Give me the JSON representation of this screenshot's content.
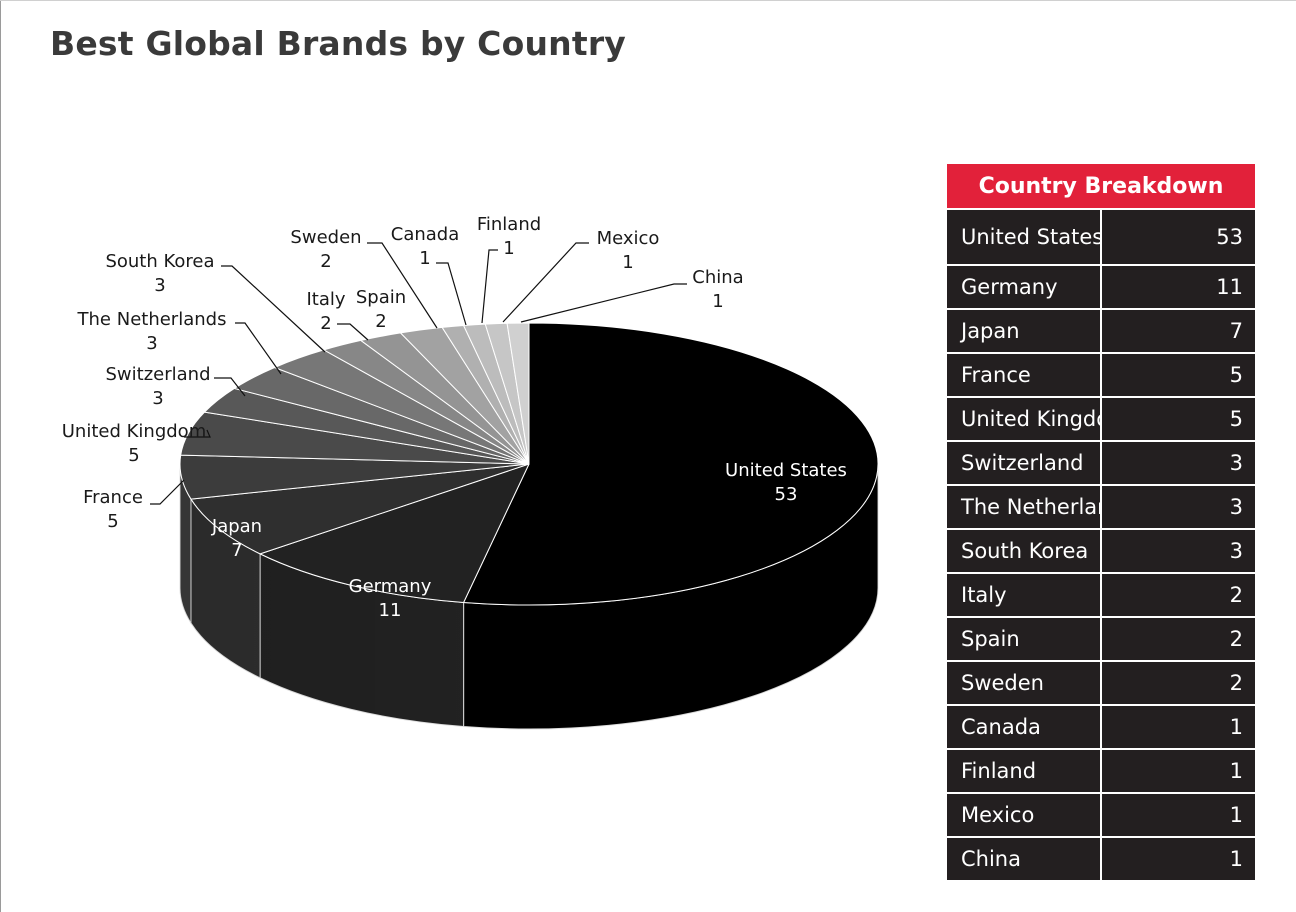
{
  "page": {
    "title": "Best Global Brands by Country"
  },
  "table": {
    "header": "Country Breakdown",
    "rows": [
      {
        "country": "United States",
        "count": "53"
      },
      {
        "country": "Germany",
        "count": "11"
      },
      {
        "country": "Japan",
        "count": "7"
      },
      {
        "country": "France",
        "count": "5"
      },
      {
        "country": "United Kingdom",
        "count": "5"
      },
      {
        "country": "Switzerland",
        "count": "3"
      },
      {
        "country": "The Netherlands",
        "count": "3"
      },
      {
        "country": "South Korea",
        "count": "3"
      },
      {
        "country": "Italy",
        "count": "2"
      },
      {
        "country": "Spain",
        "count": "2"
      },
      {
        "country": "Sweden",
        "count": "2"
      },
      {
        "country": "Canada",
        "count": "1"
      },
      {
        "country": "Finland",
        "count": "1"
      },
      {
        "country": "Mexico",
        "count": "1"
      },
      {
        "country": "China",
        "count": "1"
      }
    ]
  },
  "chart_data": {
    "type": "pie",
    "title": "Best Global Brands by Country",
    "style": "3d",
    "categories": [
      "United States",
      "Germany",
      "Japan",
      "France",
      "United Kingdom",
      "Switzerland",
      "The Netherlands",
      "South Korea",
      "Italy",
      "Spain",
      "Sweden",
      "Canada",
      "Finland",
      "Mexico",
      "China"
    ],
    "values": [
      53,
      11,
      7,
      5,
      5,
      3,
      3,
      3,
      2,
      2,
      2,
      1,
      1,
      1,
      1
    ],
    "colors": [
      "#000000",
      "#222222",
      "#2f2f2f",
      "#3c3c3c",
      "#4a4a4a",
      "#585858",
      "#686868",
      "#777777",
      "#878787",
      "#949494",
      "#a2a2a2",
      "#b0b0b0",
      "#bcbcbc",
      "#c6c6c6",
      "#d0d0d0"
    ],
    "legend": "none"
  }
}
